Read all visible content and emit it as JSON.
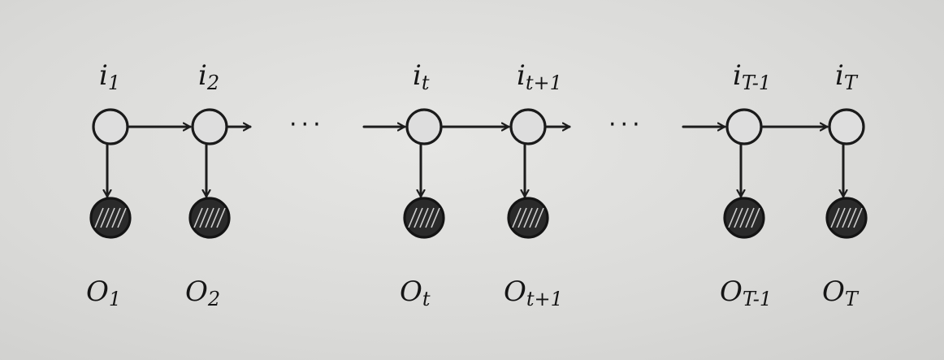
{
  "hidden_states": [
    {
      "symbol": "i",
      "sub": "1"
    },
    {
      "symbol": "i",
      "sub": "2"
    },
    {
      "symbol": "i",
      "sub": "t"
    },
    {
      "symbol": "i",
      "sub": "t+1"
    },
    {
      "symbol": "i",
      "sub": "T-1"
    },
    {
      "symbol": "i",
      "sub": "T"
    }
  ],
  "observations": [
    {
      "symbol": "O",
      "sub": "1"
    },
    {
      "symbol": "O",
      "sub": "2"
    },
    {
      "symbol": "O",
      "sub": "t"
    },
    {
      "symbol": "O",
      "sub": "t+1"
    },
    {
      "symbol": "O",
      "sub": "T-1"
    },
    {
      "symbol": "O",
      "sub": "T"
    }
  ],
  "ellipsis": "···",
  "colors": {
    "ink": "#1c1c1c",
    "paper": "#dcdcda"
  }
}
